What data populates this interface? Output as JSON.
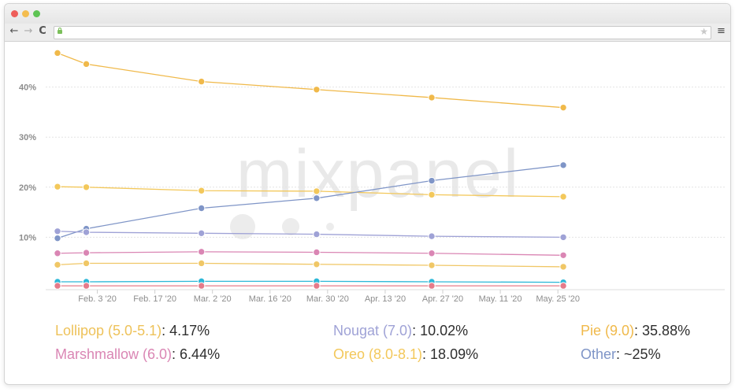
{
  "browser": {
    "back_icon": "←",
    "forward_icon": "→",
    "reload_icon": "C",
    "menu_icon": "≡",
    "star_icon": "★",
    "watermark": "mixpanel"
  },
  "chart_data": {
    "type": "line",
    "x": [
      "2020-01-27",
      "2020-02-03",
      "2020-03-02",
      "2020-03-30",
      "2020-04-27",
      "2020-05-29"
    ],
    "x_tick_labels": [
      "Feb. 3 '20",
      "Feb. 17 '20",
      "Mar. 2 '20",
      "Mar. 16 '20",
      "Mar. 30 '20",
      "Apr. 13 '20",
      "Apr. 27 '20",
      "May. 11 '20",
      "May. 25 '20"
    ],
    "y_tick_labels": [
      "10%",
      "20%",
      "30%",
      "40%"
    ],
    "ylim": [
      0,
      50
    ],
    "grid": true,
    "series": [
      {
        "color": "#f0b94a",
        "values": [
          46.8,
          44.6,
          41.1,
          39.5,
          37.9,
          35.9
        ]
      },
      {
        "color": "#f3c85b",
        "values": [
          20.1,
          20.0,
          19.3,
          19.2,
          18.5,
          18.1
        ]
      },
      {
        "color": "#7f95c7",
        "values": [
          9.8,
          11.7,
          15.8,
          17.8,
          21.3,
          24.4
        ]
      },
      {
        "color": "#9fa2d6",
        "values": [
          11.2,
          11.0,
          10.8,
          10.6,
          10.2,
          10.0
        ]
      },
      {
        "color": "#da86b4",
        "values": [
          6.8,
          6.9,
          7.1,
          7.0,
          6.8,
          6.4
        ]
      },
      {
        "color": "#f0c766",
        "values": [
          4.5,
          4.8,
          4.8,
          4.6,
          4.4,
          4.1
        ]
      },
      {
        "color": "#2cb8d8",
        "values": [
          1.1,
          1.1,
          1.2,
          1.2,
          1.1,
          1.0
        ]
      },
      {
        "color": "#e57b8a",
        "values": [
          0.3,
          0.3,
          0.3,
          0.3,
          0.3,
          0.3
        ]
      }
    ]
  },
  "legend": [
    {
      "name": "Lollipop (5.0-5.1)",
      "value": ": 4.17%",
      "color": "#eec25a"
    },
    {
      "name": "Nougat (7.0)",
      "value": ": 10.02%",
      "color": "#9fa2d6"
    },
    {
      "name": "Pie (9.0)",
      "value": ": 35.88%",
      "color": "#f0b94a"
    },
    {
      "name": "Marshmallow (6.0)",
      "value": ": 6.44%",
      "color": "#da86b4"
    },
    {
      "name": "Oreo (8.0-8.1)",
      "value": ": 18.09%",
      "color": "#f3c85b"
    },
    {
      "name": "Other",
      "value": ": ~25%",
      "color": "#7f95c7"
    }
  ]
}
